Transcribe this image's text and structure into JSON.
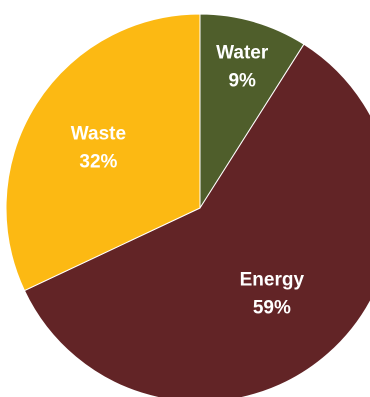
{
  "chart_data": {
    "type": "pie",
    "title": "",
    "slices": [
      {
        "name": "Water",
        "value": 9,
        "display": "9%",
        "color": "#4f5e2b"
      },
      {
        "name": "Energy",
        "value": 59,
        "display": "59%",
        "color": "#622426"
      },
      {
        "name": "Waste",
        "value": 32,
        "display": "32%",
        "color": "#fcb913"
      }
    ],
    "start": "12 o'clock",
    "direction": "clockwise",
    "legend": "none (labels inside slices)"
  }
}
